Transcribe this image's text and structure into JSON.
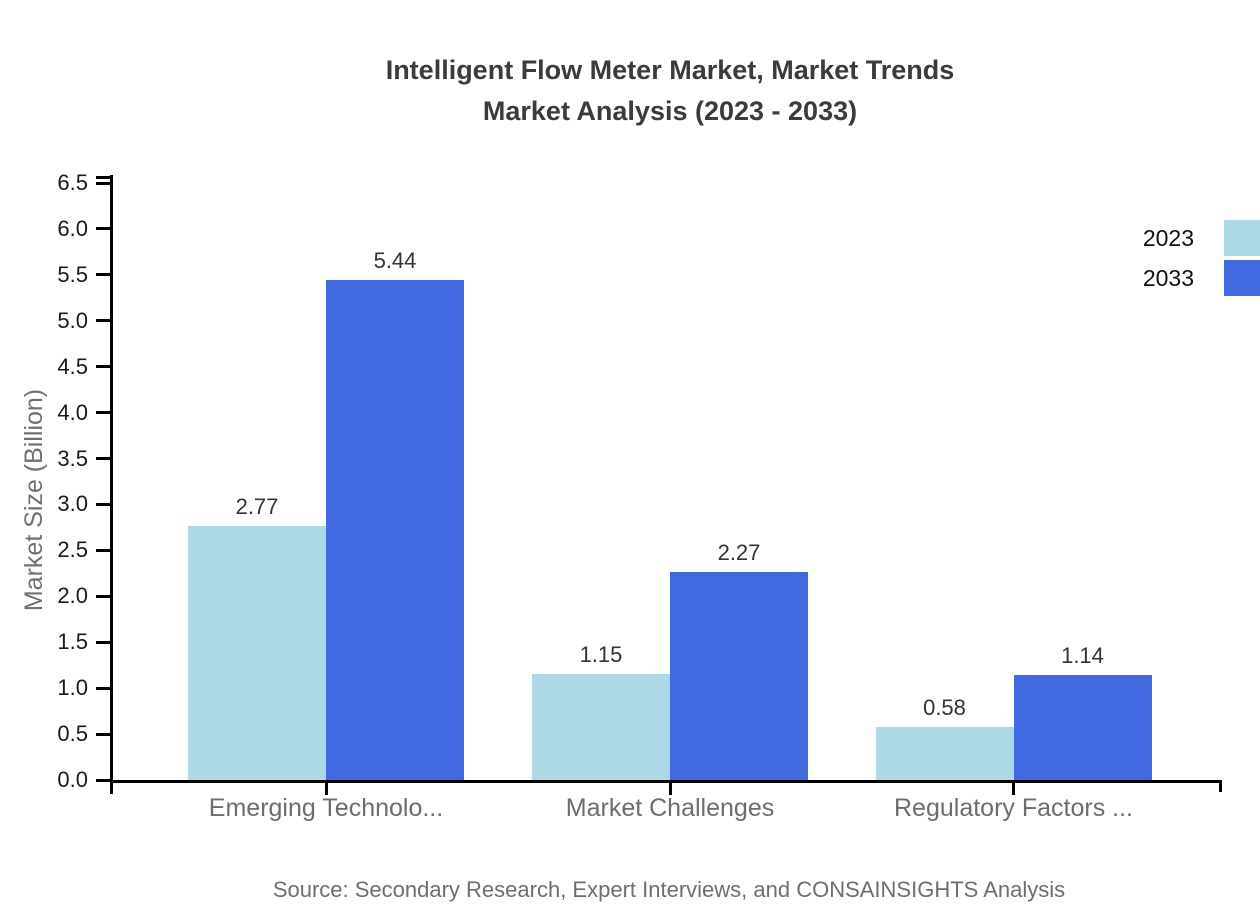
{
  "chart_data": {
    "type": "bar",
    "title_line1": "Intelligent Flow Meter Market, Market Trends",
    "title_line2": "Market Analysis (2023 - 2033)",
    "ylabel": "Market Size (Billion)",
    "categories": [
      "Emerging Technolo...",
      "Market Challenges",
      "Regulatory Factors ..."
    ],
    "series": [
      {
        "name": "2023",
        "color": "#ADD8E6",
        "values": [
          2.77,
          1.15,
          0.58
        ]
      },
      {
        "name": "2033",
        "color": "#4169E1",
        "values": [
          5.44,
          2.27,
          1.14
        ]
      }
    ],
    "ylim": [
      0,
      6.5
    ],
    "ytick_labels": [
      "0.0",
      "0.5",
      "1.0",
      "1.5",
      "2.0",
      "2.5",
      "3.0",
      "3.5",
      "4.0",
      "4.5",
      "5.0",
      "5.5",
      "6.0",
      "6.5"
    ],
    "grid": false,
    "legend_position": "top-right",
    "axis_color": "#000000",
    "source_note": "Source: Secondary Research, Expert Interviews, and CONSAINSIGHTS Analysis"
  }
}
